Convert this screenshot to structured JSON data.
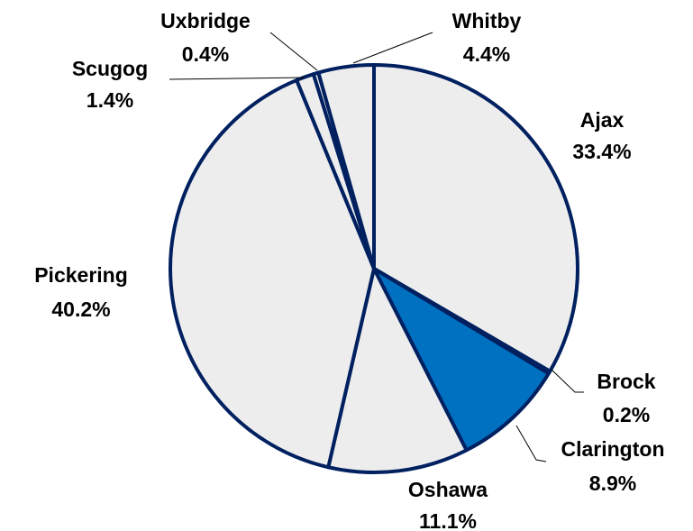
{
  "chart_data": {
    "type": "pie",
    "categories": [
      "Ajax",
      "Brock",
      "Clarington",
      "Oshawa",
      "Pickering",
      "Scugog",
      "Uxbridge",
      "Whitby"
    ],
    "values": [
      33.4,
      0.2,
      8.9,
      11.1,
      40.2,
      1.4,
      0.4,
      4.4
    ],
    "value_labels": [
      "33.4%",
      "0.2%",
      "8.9%",
      "11.1%",
      "40.2%",
      "1.4%",
      "0.4%",
      "4.4%"
    ],
    "colors": [
      "#ededed",
      "#ededed",
      "#0070c0",
      "#ededed",
      "#ededed",
      "#ededed",
      "#ededed",
      "#ededed"
    ],
    "edge_color": "#002060"
  }
}
